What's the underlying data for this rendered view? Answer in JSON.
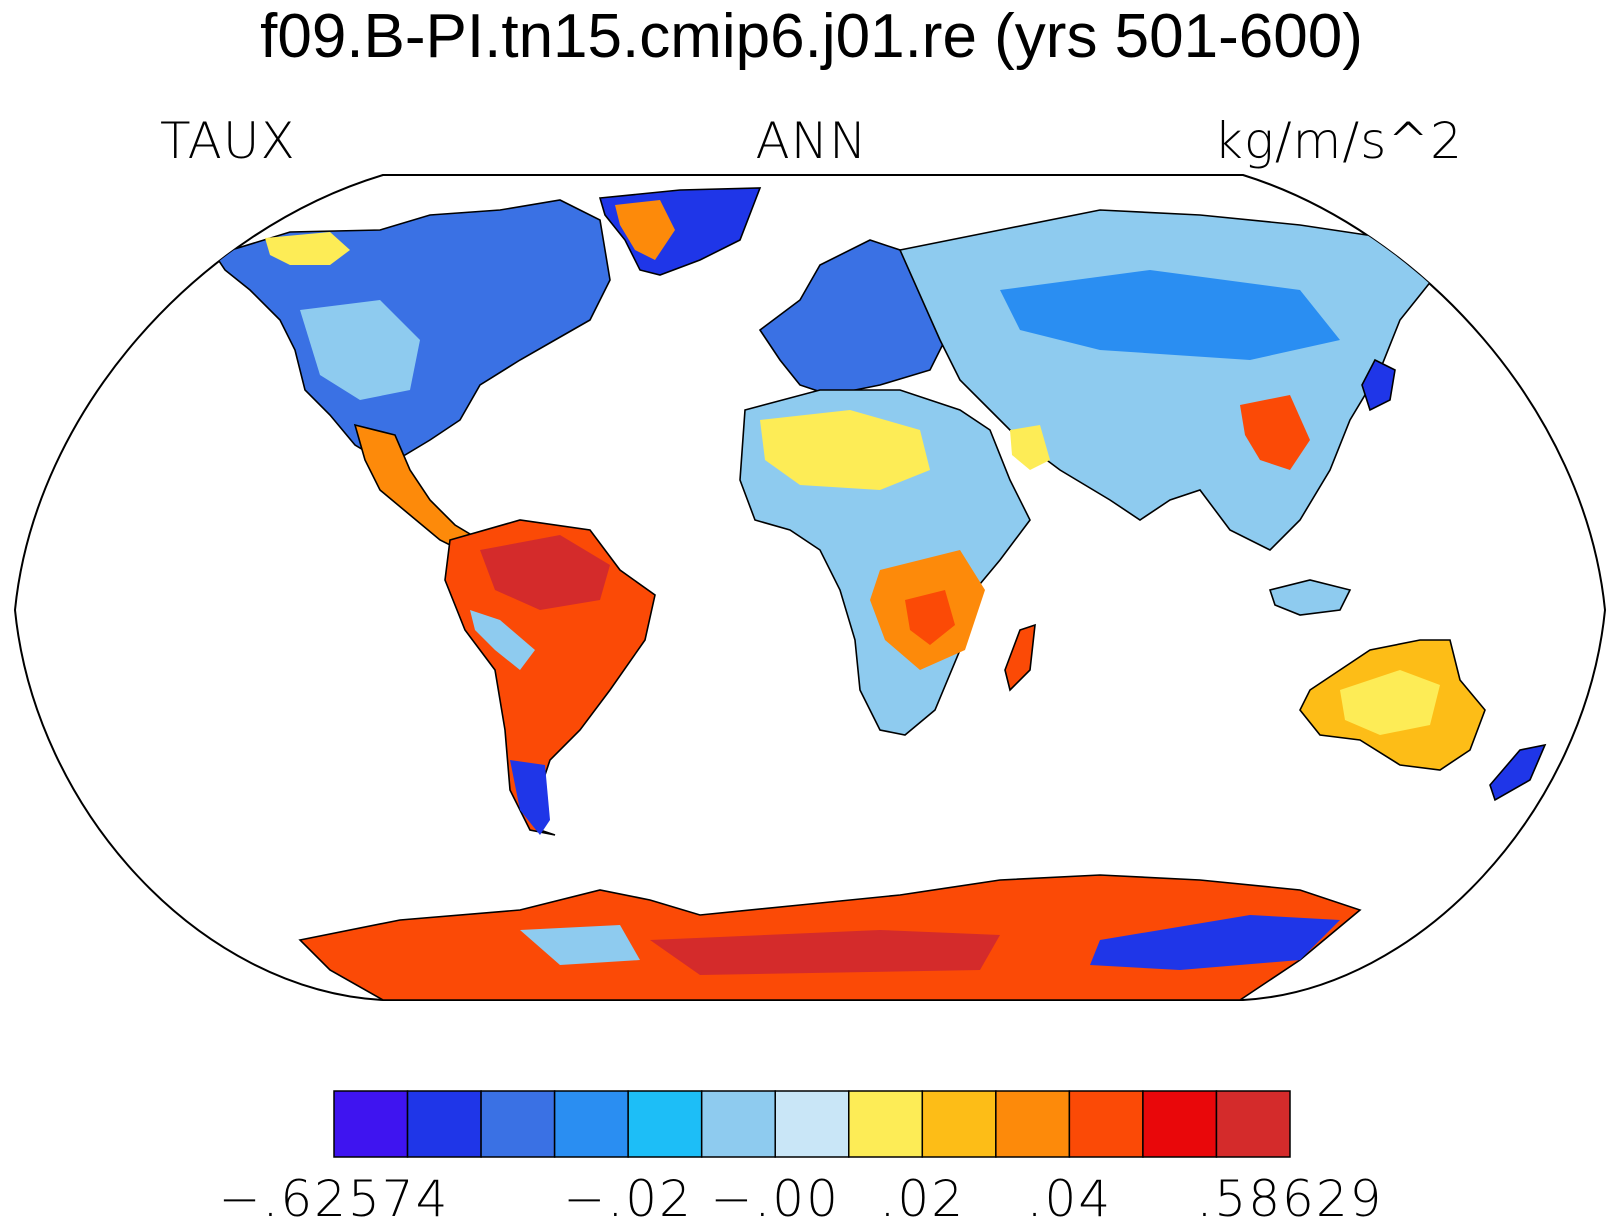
{
  "title": "f09.B-PI.tn15.cmip6.j01.re (yrs 501-600)",
  "left_label": "TAUX",
  "center_label": "ANN",
  "right_label": "kg/m/s^2",
  "map": {
    "projection": "Robinson",
    "field": "TAUX",
    "land_only": true
  },
  "colorbar": {
    "colors": [
      "#3f14f0",
      "#1f36e8",
      "#3a71e4",
      "#2a8ef2",
      "#1dbef7",
      "#8ecbef",
      "#c9e6f7",
      "#fdec56",
      "#fdbd17",
      "#fd8a0a",
      "#fb4a06",
      "#e9070a",
      "#d42b2b"
    ],
    "labels": [
      {
        "text": "−.62574",
        "boundary": 0
      },
      {
        "text": "−.02",
        "boundary": 4
      },
      {
        "text": "−.00",
        "boundary": 6
      },
      {
        "text": ".02",
        "boundary": 8
      },
      {
        "text": ".04",
        "boundary": 10
      },
      {
        "text": ".58629",
        "boundary": 13
      }
    ]
  }
}
